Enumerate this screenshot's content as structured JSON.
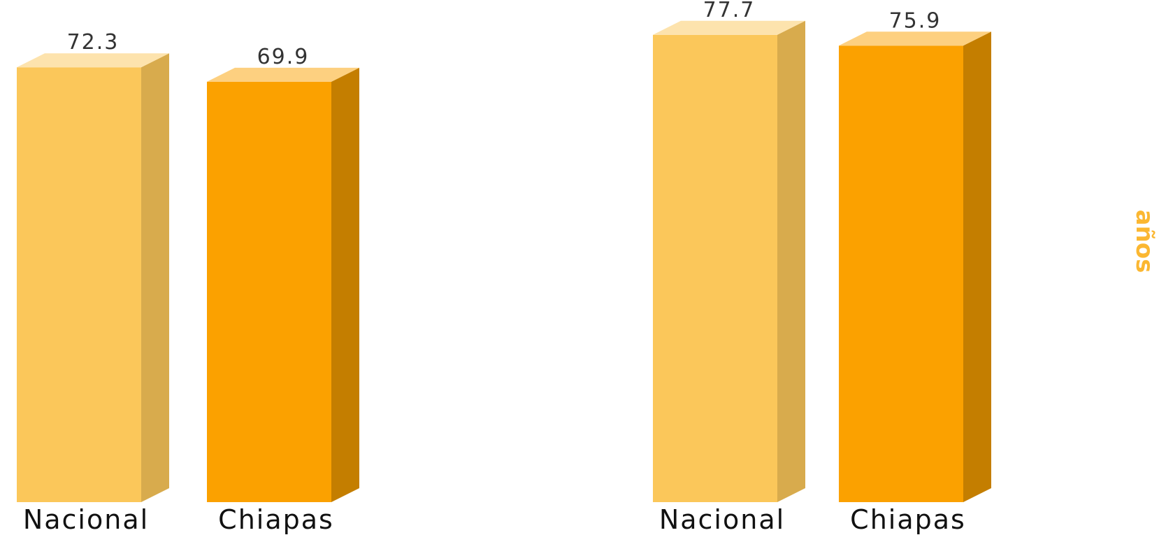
{
  "chart_data": [
    {
      "type": "bar",
      "categories": [
        "Nacional",
        "Chiapas"
      ],
      "values": [
        72.3,
        69.9
      ],
      "value_labels": [
        "72.3",
        "69.9"
      ],
      "colors": [
        "#FBC75A",
        "#FBA100"
      ],
      "ylim": [
        0,
        80
      ]
    },
    {
      "type": "bar",
      "categories": [
        "Nacional",
        "Chiapas"
      ],
      "values": [
        77.7,
        75.9
      ],
      "value_labels": [
        "77.7",
        "75.9"
      ],
      "colors": [
        "#FBC75A",
        "#FBA100"
      ],
      "ylim": [
        0,
        80
      ]
    }
  ],
  "unit_label": "años",
  "unit_color": "#FBB731"
}
